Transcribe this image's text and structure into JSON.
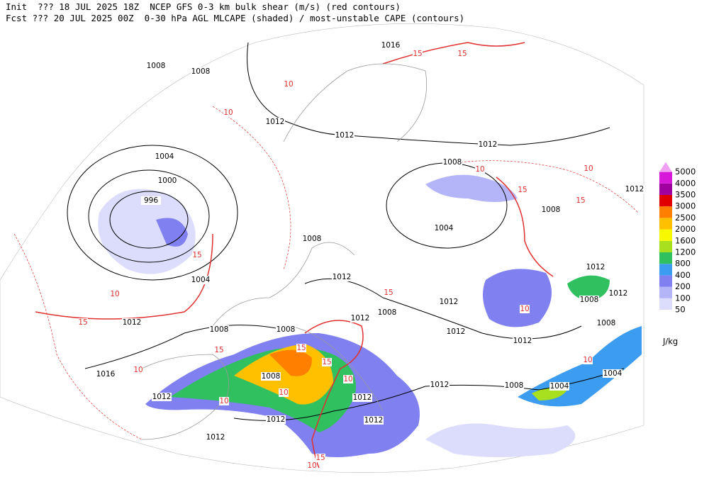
{
  "header": {
    "line1": "Init  ??? 18 JUL 2025 18Z  NCEP GFS 0-3 km bulk shear (m/s) (red contours)",
    "line2": "Fcst ??? 20 JUL 2025 00Z  0-30 hPa AGL MLCAPE (shaded) / most-unstable CAPE (contours)"
  },
  "cape_scale": {
    "levels": [
      50,
      100,
      200,
      400,
      800,
      1200,
      1600,
      2000,
      2500,
      3000,
      3500,
      4000,
      5000
    ],
    "colors": [
      "#dcdcfc",
      "#b4b4f8",
      "#8080f0",
      "#3c9cf0",
      "#30c060",
      "#a8e020",
      "#f8f800",
      "#ffc000",
      "#ff8000",
      "#e00000",
      "#a000a0",
      "#d818d8",
      "#f0a0f0"
    ],
    "unit": "J/kg"
  },
  "isobar_labels": [
    1008,
    1008,
    1016,
    1012,
    1012,
    1012,
    1004,
    1008,
    1000,
    996,
    1012,
    1008,
    1004,
    1008,
    1012,
    1012,
    1004,
    1012,
    1008,
    1012,
    1008,
    1012,
    1012,
    1008,
    1008,
    1008,
    1012,
    1012,
    1016,
    1004,
    1008,
    1012,
    1008,
    1004,
    1012,
    1012,
    1012,
    1012,
    1012
  ],
  "shear_labels": [
    10,
    15,
    15,
    10,
    10,
    10,
    15,
    15,
    15,
    10,
    15,
    10,
    10,
    15,
    15,
    15,
    10,
    10,
    10,
    15,
    10,
    10,
    15
  ]
}
